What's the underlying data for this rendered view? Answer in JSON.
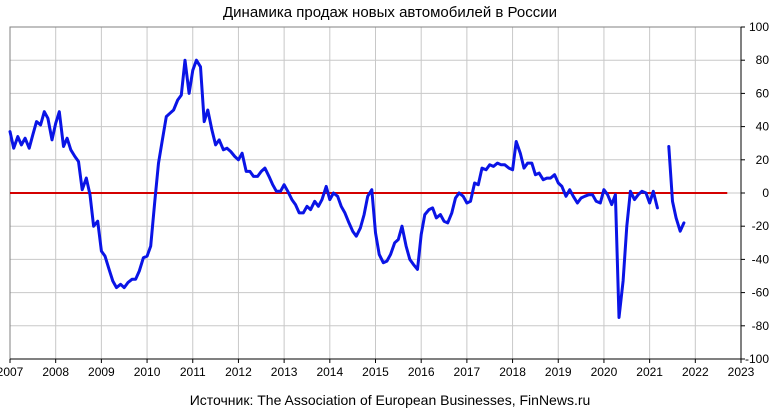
{
  "chart_data": {
    "type": "line",
    "title": "Динамика продаж новых автомобилей в России",
    "source": "Источник: The Association of European Businesses, FinNews.ru",
    "xlabel": "",
    "ylabel": "",
    "xlim": [
      2007,
      2023
    ],
    "ylim": [
      -100,
      100
    ],
    "x_ticks": [
      "2007",
      "2008",
      "2009",
      "2010",
      "2011",
      "2012",
      "2013",
      "2014",
      "2015",
      "2016",
      "2017",
      "2018",
      "2019",
      "2020",
      "2021",
      "2022",
      "2023"
    ],
    "y_ticks": [
      -100,
      -80,
      -60,
      -40,
      -20,
      0,
      20,
      40,
      60,
      80,
      100
    ],
    "grid": true,
    "colors": {
      "series": "#0a14e6",
      "zero_line": "#d40000",
      "grid": "#c8c8c8"
    },
    "reference_line": {
      "y": 0,
      "x_from": 2007,
      "x_to": 2022.7
    },
    "series": [
      {
        "segments": [
          [
            [
              2007.0,
              37
            ],
            [
              2007.08,
              27
            ],
            [
              2007.17,
              34
            ],
            [
              2007.25,
              29
            ],
            [
              2007.33,
              33
            ],
            [
              2007.42,
              27
            ],
            [
              2007.5,
              35
            ],
            [
              2007.58,
              43
            ],
            [
              2007.67,
              41
            ],
            [
              2007.75,
              49
            ],
            [
              2007.83,
              45
            ],
            [
              2007.92,
              32
            ],
            [
              2008.0,
              42
            ],
            [
              2008.08,
              49
            ],
            [
              2008.17,
              28
            ],
            [
              2008.25,
              33
            ],
            [
              2008.33,
              26
            ],
            [
              2008.42,
              22
            ],
            [
              2008.5,
              19
            ],
            [
              2008.58,
              2
            ],
            [
              2008.67,
              9
            ],
            [
              2008.75,
              -1
            ],
            [
              2008.83,
              -20
            ],
            [
              2008.92,
              -17
            ],
            [
              2009.0,
              -35
            ],
            [
              2009.08,
              -38
            ],
            [
              2009.17,
              -46
            ],
            [
              2009.25,
              -53
            ],
            [
              2009.33,
              -57
            ],
            [
              2009.42,
              -55
            ],
            [
              2009.5,
              -57
            ],
            [
              2009.58,
              -54
            ],
            [
              2009.67,
              -52
            ],
            [
              2009.75,
              -52
            ],
            [
              2009.83,
              -47
            ],
            [
              2009.92,
              -39
            ],
            [
              2010.0,
              -38
            ],
            [
              2010.08,
              -32
            ],
            [
              2010.17,
              -5
            ],
            [
              2010.25,
              18
            ],
            [
              2010.33,
              31
            ],
            [
              2010.42,
              46
            ],
            [
              2010.5,
              48
            ],
            [
              2010.58,
              50
            ],
            [
              2010.67,
              56
            ],
            [
              2010.75,
              59
            ],
            [
              2010.83,
              80
            ],
            [
              2010.92,
              60
            ],
            [
              2011.0,
              74
            ],
            [
              2011.08,
              80
            ],
            [
              2011.17,
              76
            ],
            [
              2011.25,
              43
            ],
            [
              2011.33,
              50
            ],
            [
              2011.42,
              38
            ],
            [
              2011.5,
              29
            ],
            [
              2011.58,
              32
            ],
            [
              2011.67,
              26
            ],
            [
              2011.75,
              27
            ],
            [
              2011.83,
              25
            ],
            [
              2011.92,
              22
            ],
            [
              2012.0,
              20
            ],
            [
              2012.08,
              24
            ],
            [
              2012.17,
              13
            ],
            [
              2012.25,
              13
            ],
            [
              2012.33,
              10
            ],
            [
              2012.42,
              10
            ],
            [
              2012.5,
              13
            ],
            [
              2012.58,
              15
            ],
            [
              2012.67,
              10
            ],
            [
              2012.75,
              5
            ],
            [
              2012.83,
              1
            ],
            [
              2012.92,
              1
            ],
            [
              2013.0,
              5
            ],
            [
              2013.08,
              1
            ],
            [
              2013.17,
              -4
            ],
            [
              2013.25,
              -7
            ],
            [
              2013.33,
              -12
            ],
            [
              2013.42,
              -12
            ],
            [
              2013.5,
              -8
            ],
            [
              2013.58,
              -10
            ],
            [
              2013.67,
              -5
            ],
            [
              2013.75,
              -8
            ],
            [
              2013.83,
              -4
            ],
            [
              2013.92,
              4
            ],
            [
              2014.0,
              -4
            ],
            [
              2014.08,
              0
            ],
            [
              2014.17,
              -2
            ],
            [
              2014.25,
              -8
            ],
            [
              2014.33,
              -12
            ],
            [
              2014.42,
              -18
            ],
            [
              2014.5,
              -23
            ],
            [
              2014.58,
              -26
            ],
            [
              2014.67,
              -21
            ],
            [
              2014.75,
              -13
            ],
            [
              2014.83,
              -2
            ],
            [
              2014.92,
              2
            ],
            [
              2015.0,
              -24
            ],
            [
              2015.08,
              -37
            ],
            [
              2015.17,
              -42
            ],
            [
              2015.25,
              -41
            ],
            [
              2015.33,
              -37
            ],
            [
              2015.42,
              -30
            ],
            [
              2015.5,
              -28
            ],
            [
              2015.58,
              -20
            ],
            [
              2015.67,
              -32
            ],
            [
              2015.75,
              -40
            ],
            [
              2015.83,
              -43
            ],
            [
              2015.92,
              -46
            ],
            [
              2016.0,
              -25
            ],
            [
              2016.08,
              -13
            ],
            [
              2016.17,
              -10
            ],
            [
              2016.25,
              -9
            ],
            [
              2016.33,
              -15
            ],
            [
              2016.42,
              -13
            ],
            [
              2016.5,
              -17
            ],
            [
              2016.58,
              -18
            ],
            [
              2016.67,
              -12
            ],
            [
              2016.75,
              -3
            ],
            [
              2016.83,
              0
            ],
            [
              2016.92,
              -2
            ],
            [
              2017.0,
              -6
            ],
            [
              2017.08,
              -5
            ],
            [
              2017.17,
              6
            ],
            [
              2017.25,
              5
            ],
            [
              2017.33,
              15
            ],
            [
              2017.42,
              14
            ],
            [
              2017.5,
              17
            ],
            [
              2017.58,
              16
            ],
            [
              2017.67,
              18
            ],
            [
              2017.75,
              17
            ],
            [
              2017.83,
              17
            ],
            [
              2017.92,
              15
            ],
            [
              2018.0,
              14
            ],
            [
              2018.08,
              31
            ],
            [
              2018.17,
              24
            ],
            [
              2018.25,
              15
            ],
            [
              2018.33,
              18
            ],
            [
              2018.42,
              18
            ],
            [
              2018.5,
              11
            ],
            [
              2018.58,
              12
            ],
            [
              2018.67,
              8
            ],
            [
              2018.75,
              9
            ],
            [
              2018.83,
              9
            ],
            [
              2018.92,
              11
            ],
            [
              2019.0,
              6
            ],
            [
              2019.08,
              4
            ],
            [
              2019.17,
              -2
            ],
            [
              2019.25,
              2
            ],
            [
              2019.33,
              -2
            ],
            [
              2019.42,
              -6
            ],
            [
              2019.5,
              -3
            ],
            [
              2019.58,
              -2
            ],
            [
              2019.67,
              -1
            ],
            [
              2019.75,
              -1
            ],
            [
              2019.83,
              -5
            ],
            [
              2019.92,
              -6
            ],
            [
              2020.0,
              2
            ],
            [
              2020.08,
              -1
            ],
            [
              2020.17,
              -7
            ],
            [
              2020.25,
              -1
            ],
            [
              2020.33,
              -75
            ],
            [
              2020.42,
              -53
            ],
            [
              2020.5,
              -20
            ],
            [
              2020.58,
              1
            ],
            [
              2020.67,
              -4
            ],
            [
              2020.75,
              -1
            ],
            [
              2020.83,
              1
            ],
            [
              2020.92,
              0
            ],
            [
              2021.0,
              -6
            ],
            [
              2021.08,
              1
            ],
            [
              2021.17,
              -9
            ]
          ],
          [
            [
              2021.42,
              28
            ],
            [
              2021.5,
              -5
            ],
            [
              2021.58,
              -15
            ],
            [
              2021.67,
              -23
            ],
            [
              2021.75,
              -18
            ]
          ]
        ]
      }
    ]
  }
}
